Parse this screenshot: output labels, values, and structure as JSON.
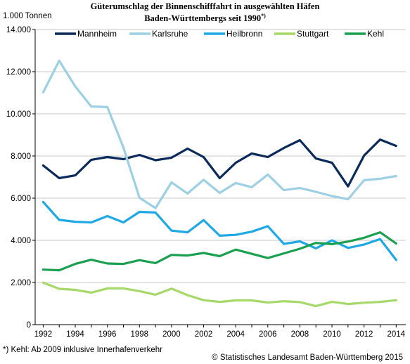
{
  "chart_data": {
    "type": "line",
    "title_line1": "Güterumschlag der Binnenschifffahrt in ausgewählten Häfen",
    "title_line2": "Baden-Württembergs seit 1990",
    "title_sup": "*)",
    "ylabel": "1.000 Tonnen",
    "ylim": [
      0,
      14000
    ],
    "yticks": [
      0,
      2000,
      4000,
      6000,
      8000,
      10000,
      12000,
      14000
    ],
    "ytick_labels": [
      "0",
      "2.000",
      "4.000",
      "6.000",
      "8.000",
      "10.000",
      "12.000",
      "14.000"
    ],
    "xlim": [
      1991.5,
      2014.6
    ],
    "xticks": [
      1992,
      1994,
      1996,
      1998,
      2000,
      2002,
      2004,
      2006,
      2008,
      2010,
      2012,
      2014
    ],
    "x": [
      1992,
      1993,
      1994,
      1995,
      1996,
      1997,
      1998,
      1999,
      2000,
      2001,
      2002,
      2003,
      2004,
      2005,
      2006,
      2007,
      2008,
      2009,
      2010,
      2011,
      2012,
      2013,
      2014
    ],
    "grid": "horizontal",
    "legend_position": "top",
    "series": [
      {
        "name": "Mannheim",
        "color": "#0b2a5a",
        "values": [
          7550,
          6950,
          7080,
          7820,
          7950,
          7850,
          8050,
          7800,
          7920,
          8350,
          7950,
          6950,
          7680,
          8120,
          7950,
          8380,
          8750,
          7880,
          7680,
          6560,
          8020,
          8780,
          8480
        ]
      },
      {
        "name": "Karlsruhe",
        "color": "#9dd0e2",
        "values": [
          11020,
          12520,
          11300,
          10350,
          10320,
          8400,
          6020,
          5530,
          6750,
          6220,
          6870,
          6250,
          6720,
          6520,
          7120,
          6380,
          6480,
          6300,
          6100,
          5950,
          6850,
          6920,
          7050
        ]
      },
      {
        "name": "Heilbronn",
        "color": "#1fa8e4",
        "values": [
          5820,
          4970,
          4880,
          4850,
          5150,
          4850,
          5350,
          5320,
          4460,
          4380,
          4960,
          4220,
          4260,
          4410,
          4670,
          3830,
          3950,
          3620,
          4000,
          3640,
          3800,
          4060,
          3070
        ]
      },
      {
        "name": "Stuttgart",
        "color": "#a6d86a",
        "values": [
          1990,
          1700,
          1650,
          1520,
          1720,
          1720,
          1590,
          1420,
          1710,
          1400,
          1160,
          1080,
          1150,
          1150,
          1050,
          1110,
          1070,
          880,
          1080,
          980,
          1040,
          1080,
          1160
        ]
      },
      {
        "name": "Kehl",
        "color": "#1aa050",
        "values": [
          2610,
          2580,
          2880,
          3080,
          2900,
          2880,
          3060,
          2920,
          3310,
          3280,
          3400,
          3250,
          3560,
          3360,
          3160,
          3380,
          3600,
          3880,
          3820,
          3940,
          4120,
          4380,
          3850
        ]
      }
    ]
  },
  "footnote": "*) Kehl: Ab 2009 inklusive Innerhafenverkehr",
  "source": "© Statistisches Landesamt Baden-Württemberg 2015"
}
